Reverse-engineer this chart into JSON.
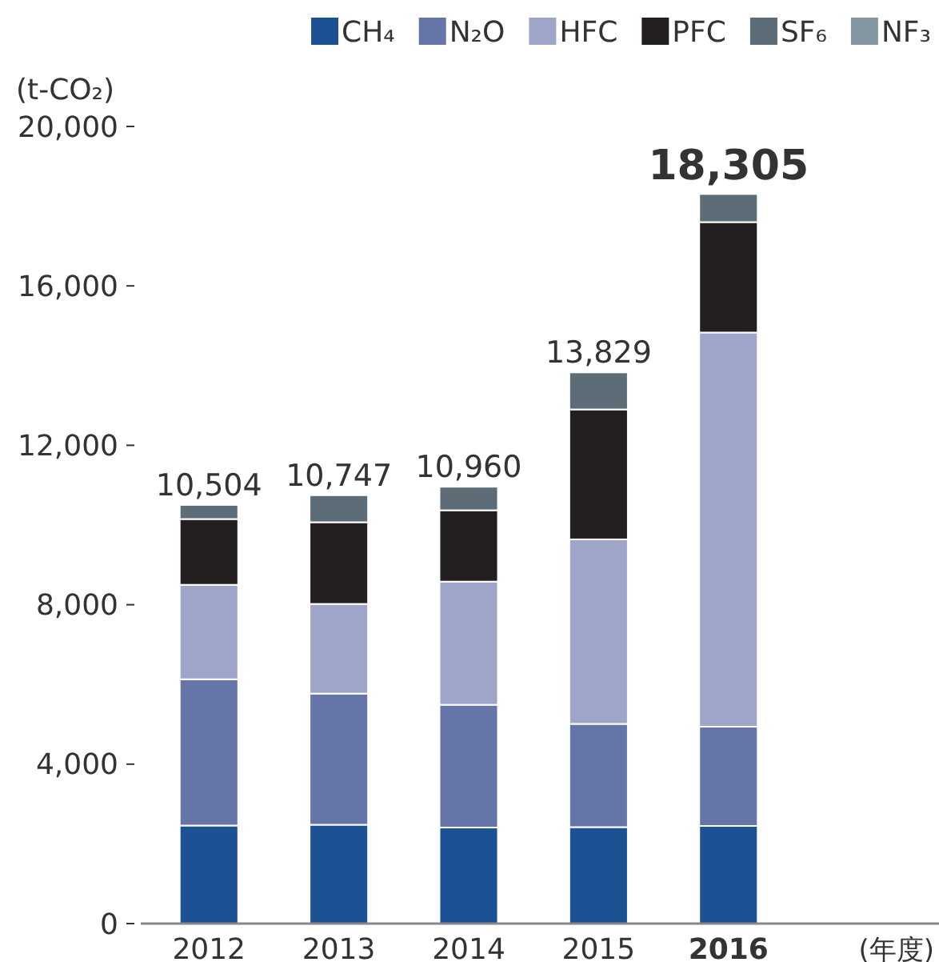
{
  "chart_data": {
    "type": "bar",
    "stacked": true,
    "ylabel": "(t-CO₂)",
    "xlabel": "(年度)",
    "categories": [
      "2012",
      "2013",
      "2014",
      "2015",
      "2016"
    ],
    "series": [
      {
        "name": "CH₄",
        "color": "#1c5193",
        "values": [
          2460,
          2480,
          2410,
          2420,
          2450
        ]
      },
      {
        "name": "N₂O",
        "color": "#6675a8",
        "values": [
          3670,
          3290,
          3080,
          2590,
          2490
        ]
      },
      {
        "name": "HFC",
        "color": "#9fa5c9",
        "values": [
          2370,
          2250,
          3090,
          4630,
          9890
        ]
      },
      {
        "name": "PFC",
        "color": "#231f20",
        "values": [
          1650,
          2050,
          1790,
          3260,
          2770
        ]
      },
      {
        "name": "SF₆",
        "color": "#5c6d78",
        "values": [
          354,
          677,
          590,
          929,
          705
        ]
      },
      {
        "name": "NF₃",
        "color": "#8497a0",
        "values": [
          0,
          0,
          0,
          0,
          0
        ]
      }
    ],
    "totals": [
      "10,504",
      "10,747",
      "10,960",
      "13,829",
      "18,305"
    ],
    "ylim": [
      0,
      20000
    ],
    "yticks": [
      {
        "value": 0,
        "label": "0"
      },
      {
        "value": 4000,
        "label": "4,000"
      },
      {
        "value": 8000,
        "label": "8,000"
      },
      {
        "value": 12000,
        "label": "12,000"
      },
      {
        "value": 16000,
        "label": "16,000"
      },
      {
        "value": 20000,
        "label": "20,000"
      }
    ],
    "grid": false,
    "legend": "top right"
  }
}
